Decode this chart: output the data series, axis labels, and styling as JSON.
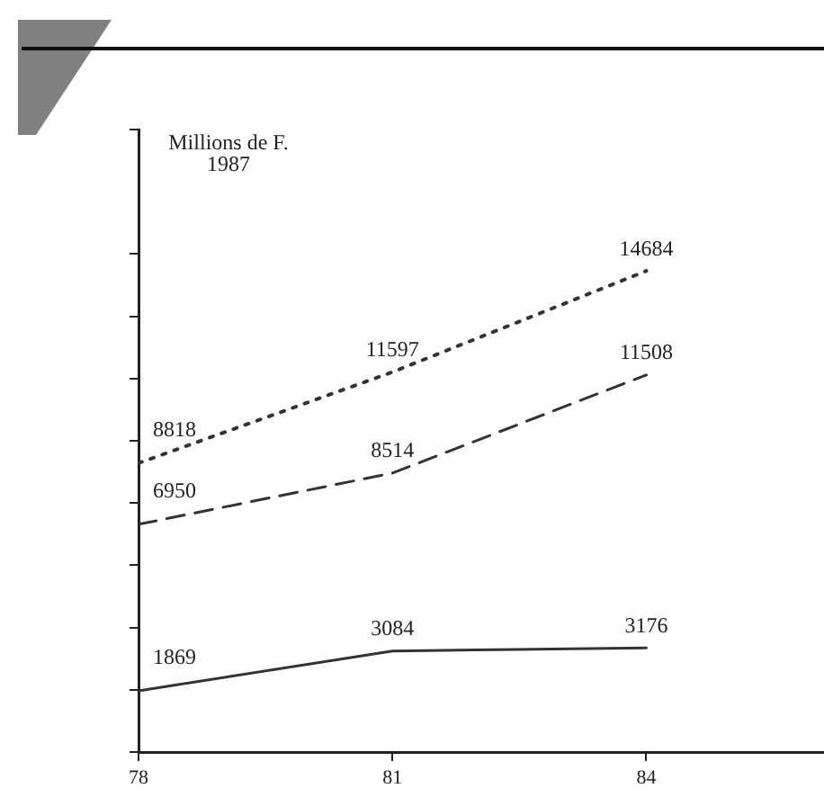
{
  "chart_data": {
    "type": "line",
    "ylabel": "Millions de F.\n1987",
    "x": [
      78,
      81,
      84
    ],
    "xlim": [
      78,
      86.1
    ],
    "xticks": [
      78,
      81,
      84
    ],
    "ylim": [
      0,
      19000
    ],
    "yticks": [
      {
        "value": 0,
        "label": null
      },
      {
        "value": 1900,
        "label": null
      },
      {
        "value": 3800,
        "label": null
      },
      {
        "value": 5700,
        "label": null
      },
      {
        "value": 7600,
        "label": null
      },
      {
        "value": 9500,
        "label": null
      },
      {
        "value": 11400,
        "label": null
      },
      {
        "value": 13300,
        "label": null
      },
      {
        "value": 15200,
        "label": null
      },
      {
        "value": 19000,
        "label": null
      }
    ],
    "series": [
      {
        "color": "#333333",
        "line_style": "dotted",
        "values": [
          8818,
          11597,
          14684
        ]
      },
      {
        "color": "#333333",
        "line_style": "dashed",
        "values": [
          6950,
          8514,
          11508
        ]
      },
      {
        "color": "#333333",
        "line_style": "solid",
        "values": [
          1869,
          3084,
          3176
        ]
      }
    ],
    "data_labels": true,
    "grid": false,
    "legend": false,
    "marker": "none"
  }
}
